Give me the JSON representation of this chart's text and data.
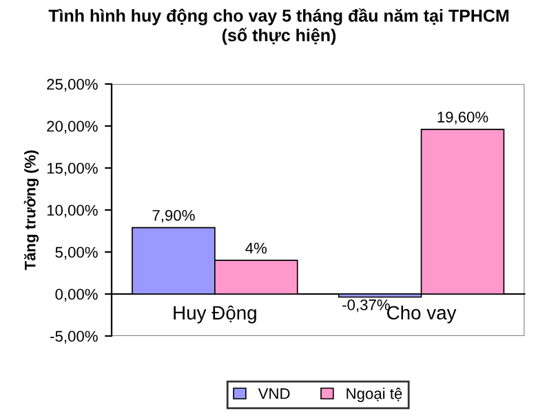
{
  "chart_data": {
    "type": "bar",
    "title": "Tình hình huy động cho vay 5 tháng đầu năm tại TPHCM\n(số thực hiện)",
    "ylabel": "Tăng trưởng (%)",
    "categories": [
      "Huy Động",
      "Cho vay"
    ],
    "series": [
      {
        "name": "VND",
        "color": "#9999ff",
        "values": [
          7.9,
          -0.37
        ],
        "value_labels": [
          "7,90%",
          "-0,37%"
        ]
      },
      {
        "name": "Ngoại tệ",
        "color": "#ff99cc",
        "values": [
          4,
          19.6
        ],
        "value_labels": [
          "4%",
          "19,60%"
        ]
      }
    ],
    "ylim": [
      -5,
      25
    ],
    "yticks": [
      {
        "value": -5,
        "label": "-5,00%"
      },
      {
        "value": 0,
        "label": "0,00%"
      },
      {
        "value": 5,
        "label": "5,00%"
      },
      {
        "value": 10,
        "label": "10,00%"
      },
      {
        "value": 15,
        "label": "15,00%"
      },
      {
        "value": 20,
        "label": "20,00%"
      },
      {
        "value": 25,
        "label": "25,00%"
      }
    ],
    "grid": false,
    "legend": "bottom"
  }
}
